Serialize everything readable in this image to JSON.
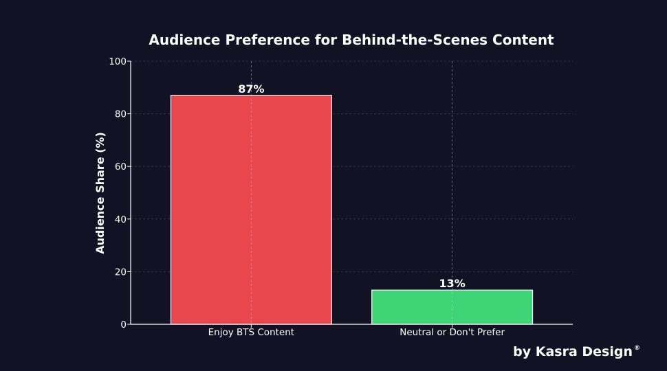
{
  "chart_data": {
    "type": "bar",
    "title": "Audience Preference for Behind-the-Scenes Content",
    "xlabel": "",
    "ylabel": "Audience Share (%)",
    "ylim": [
      0,
      100
    ],
    "yticks": [
      0,
      20,
      40,
      60,
      80,
      100
    ],
    "categories": [
      "Enjoy BTS Content",
      "Neutral or Don't Prefer"
    ],
    "values": [
      87,
      13
    ],
    "data_labels": [
      "87%",
      "13%"
    ],
    "colors": [
      "#e8474e",
      "#3fd476"
    ],
    "grid": true,
    "legend": "none"
  },
  "credit": {
    "text": "by Kasra Design",
    "mark": "®"
  },
  "colors": {
    "background": "#121224",
    "axis": "#ffffff",
    "grid": "#8a8a99",
    "bar_edge": "#ffffff"
  }
}
